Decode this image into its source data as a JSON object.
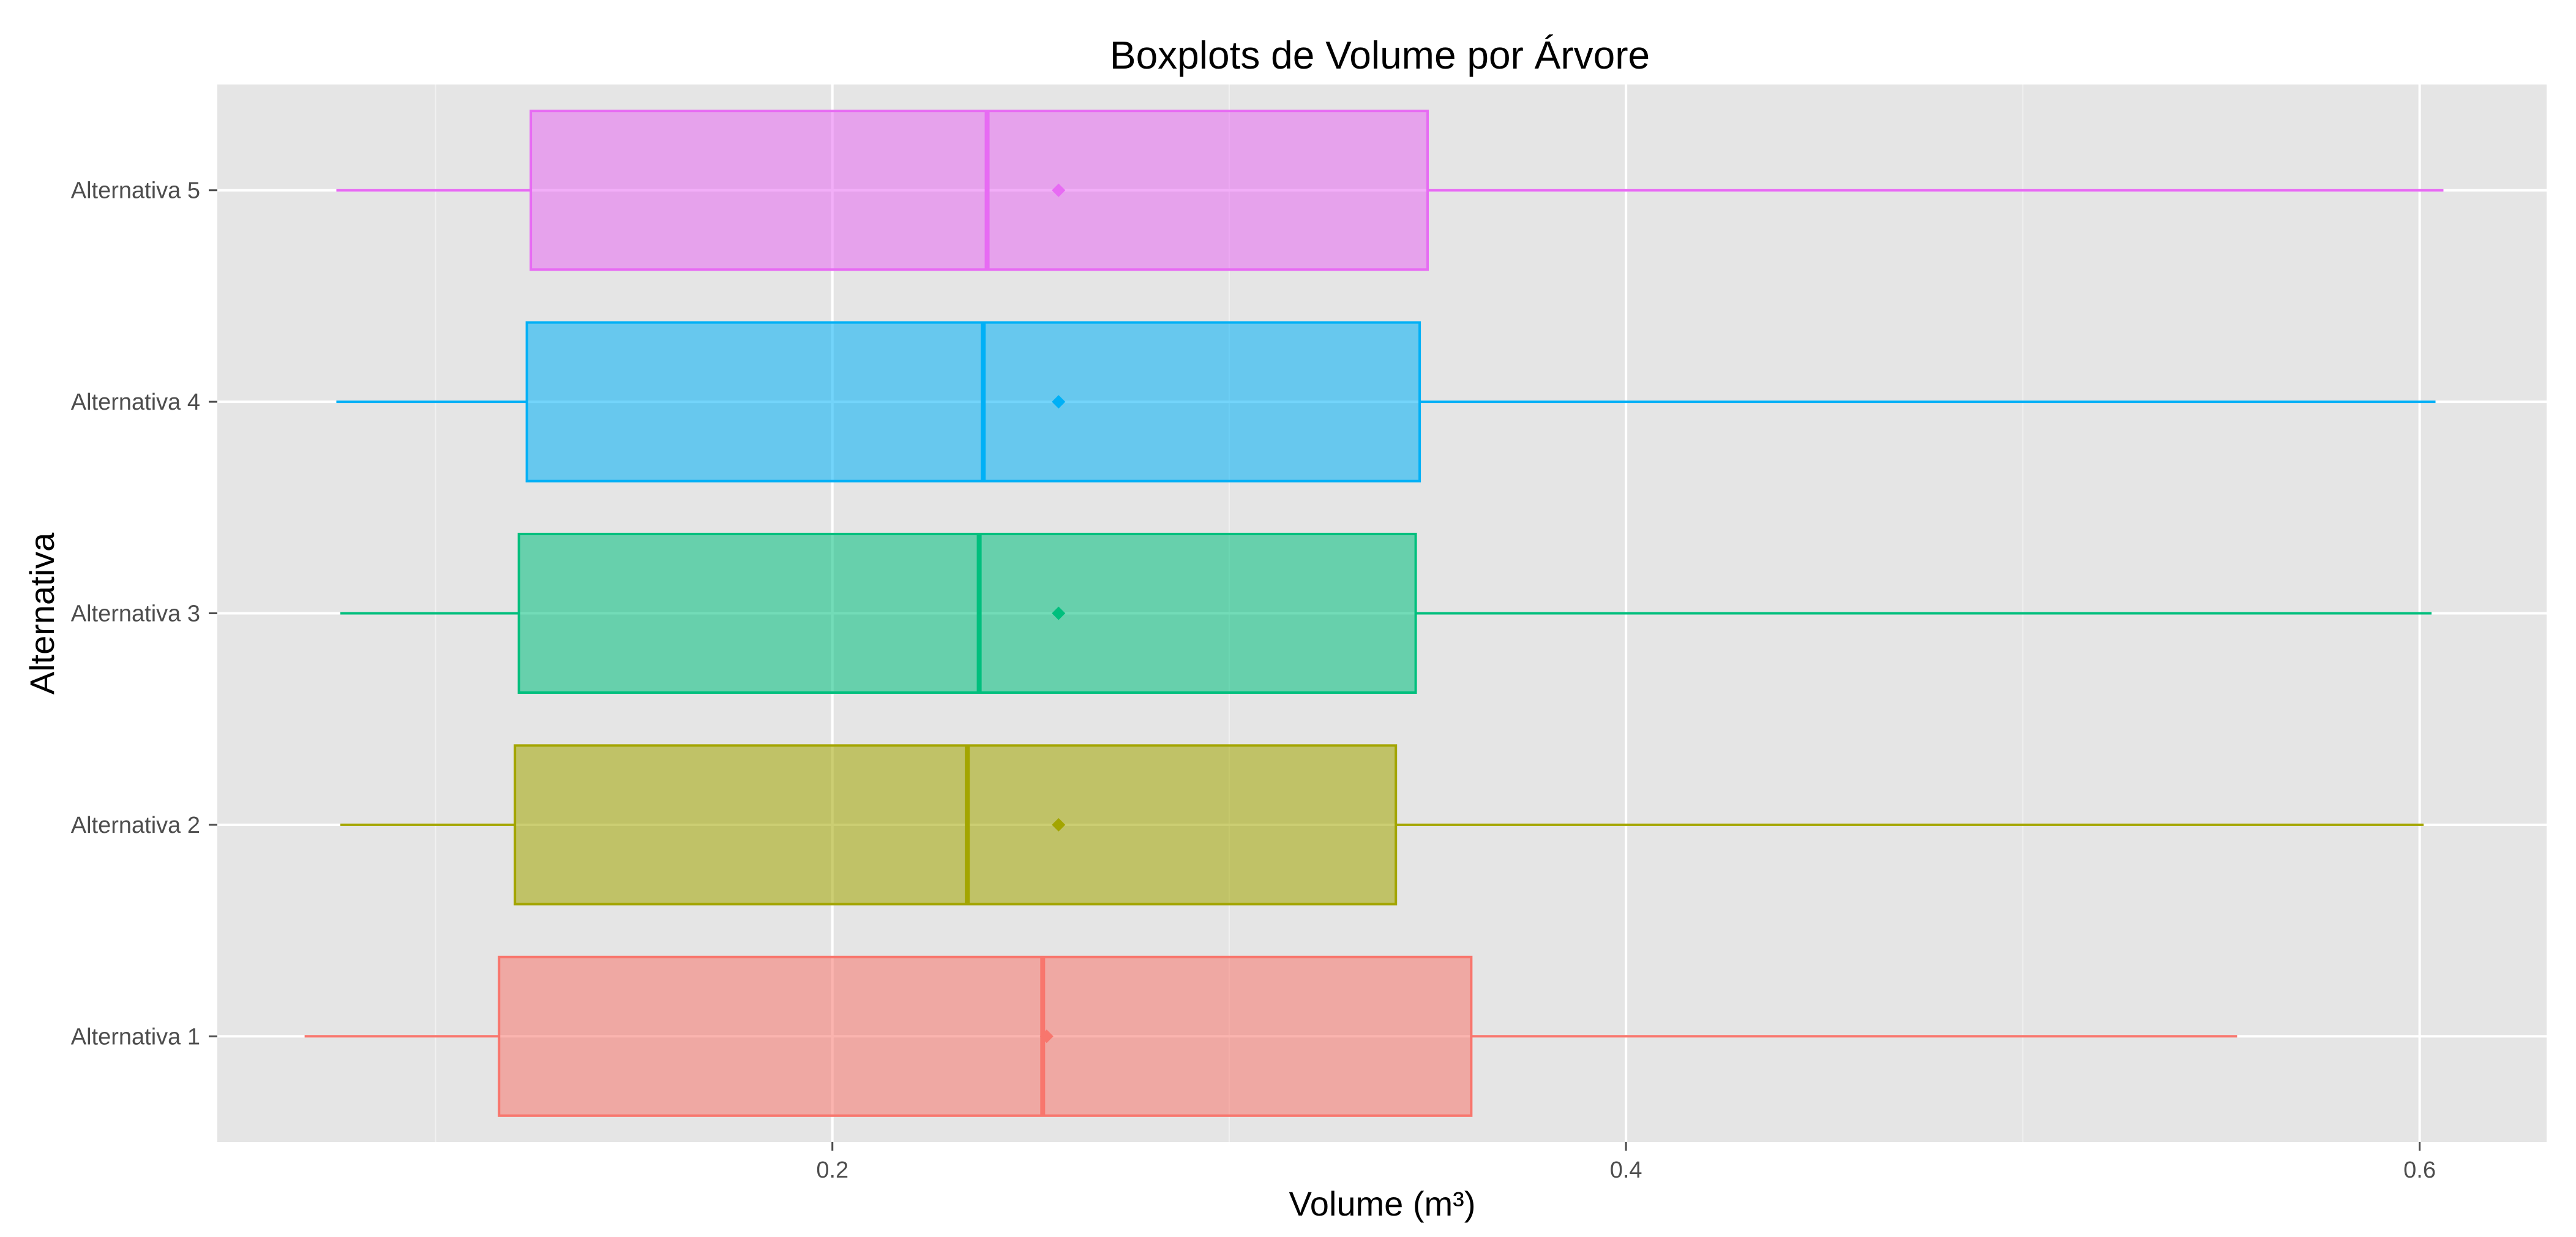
{
  "chart_data": {
    "type": "boxplot",
    "orientation": "horizontal",
    "title": "Boxplots de Volume por Árvore",
    "xlabel": "Volume (m³)",
    "ylabel": "Alternativa",
    "xlim": [
      0.045,
      0.632
    ],
    "x_ticks": [
      0.2,
      0.4,
      0.6
    ],
    "x_tick_labels": [
      "0.2",
      "0.4",
      "0.6"
    ],
    "x_minor_ticks": [
      0.1,
      0.3,
      0.5
    ],
    "grid": true,
    "panel_background": "#E5E5E5",
    "grid_color": "#FFFFFF",
    "categories": [
      "Alternativa 1",
      "Alternativa 2",
      "Alternativa 3",
      "Alternativa 4",
      "Alternativa 5"
    ],
    "series": [
      {
        "category": "Alternativa 1",
        "color": "#F8766D",
        "whisker_low": 0.067,
        "q1": 0.116,
        "median": 0.253,
        "q3": 0.361,
        "whisker_high": 0.554,
        "mean": 0.254
      },
      {
        "category": "Alternativa 2",
        "color": "#A3A500",
        "whisker_low": 0.076,
        "q1": 0.12,
        "median": 0.234,
        "q3": 0.342,
        "whisker_high": 0.601,
        "mean": 0.257
      },
      {
        "category": "Alternativa 3",
        "color": "#00BF7D",
        "whisker_low": 0.076,
        "q1": 0.121,
        "median": 0.237,
        "q3": 0.347,
        "whisker_high": 0.603,
        "mean": 0.257
      },
      {
        "category": "Alternativa 4",
        "color": "#00B0F6",
        "whisker_low": 0.075,
        "q1": 0.123,
        "median": 0.238,
        "q3": 0.348,
        "whisker_high": 0.604,
        "mean": 0.257
      },
      {
        "category": "Alternativa 5",
        "color": "#E76BF3",
        "whisker_low": 0.075,
        "q1": 0.124,
        "median": 0.239,
        "q3": 0.35,
        "whisker_high": 0.606,
        "mean": 0.257
      }
    ]
  }
}
